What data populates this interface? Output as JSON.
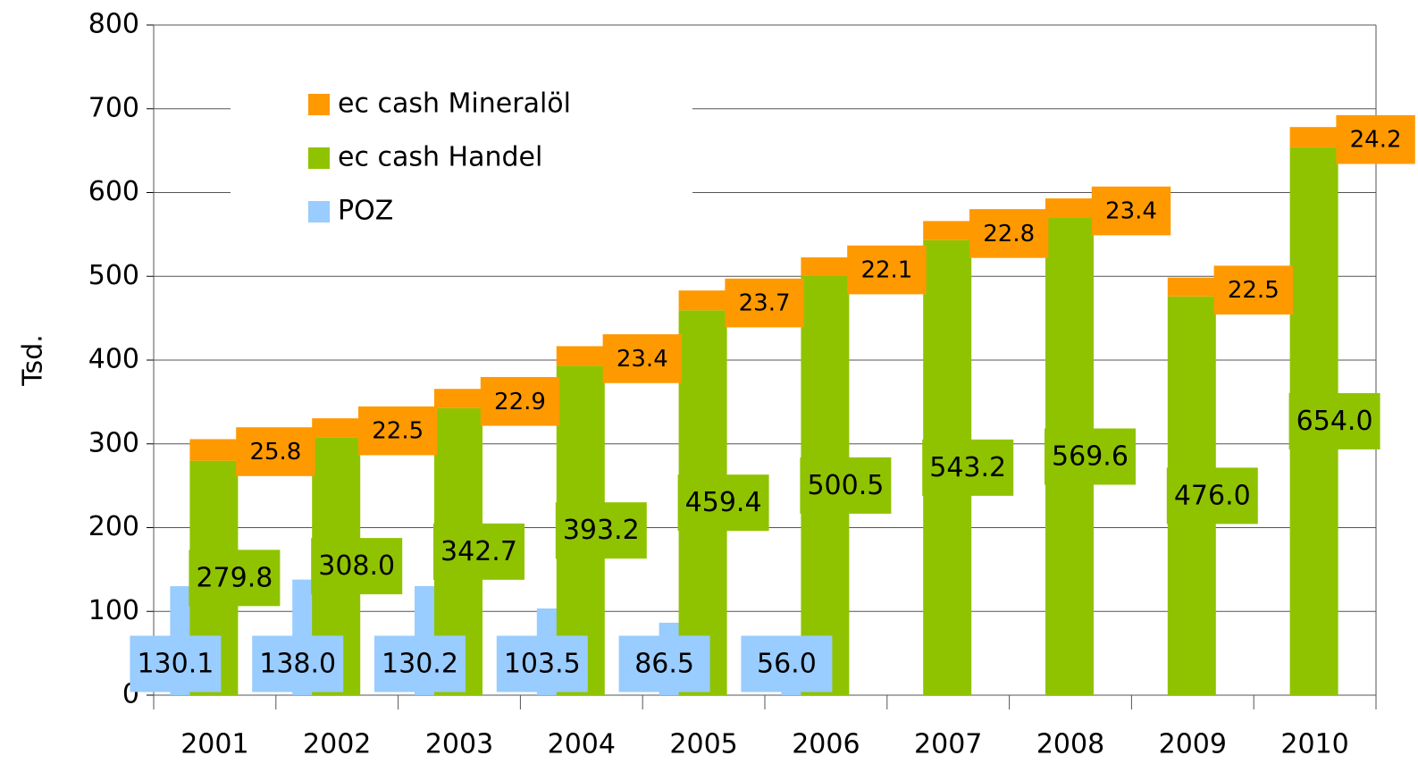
{
  "chart_data": {
    "type": "bar",
    "stacked": true,
    "y_label": "Tsd.",
    "categories": [
      "2001",
      "2002",
      "2003",
      "2004",
      "2005",
      "2006",
      "2007",
      "2008",
      "2009",
      "2010"
    ],
    "series": [
      {
        "name": "POZ",
        "color": "#99ccff",
        "stack": "poz",
        "values": [
          130.1,
          138.0,
          130.2,
          103.5,
          86.5,
          56.0,
          null,
          null,
          null,
          null
        ],
        "value_labels": [
          "130.1",
          "138.0",
          "130.2",
          "103.5",
          "86.5",
          "56.0",
          null,
          null,
          null,
          null
        ]
      },
      {
        "name": "ec cash Handel",
        "color": "#8fc300",
        "stack": "ec",
        "values": [
          279.8,
          308.0,
          342.7,
          393.2,
          459.4,
          500.5,
          543.2,
          569.6,
          476.0,
          654.0
        ],
        "value_labels": [
          "279.8",
          "308.0",
          "342.7",
          "393.2",
          "459.4",
          "500.5",
          "543.2",
          "569.6",
          "476.0",
          "654.0"
        ]
      },
      {
        "name": "ec cash Mineralöl",
        "color": "#ff9900",
        "stack": "ec",
        "values": [
          25.8,
          22.5,
          22.9,
          23.4,
          23.7,
          22.1,
          22.8,
          23.4,
          22.5,
          24.2
        ]
      }
    ],
    "ylim": [
      0,
      800
    ],
    "yticks": [
      0,
      100,
      200,
      300,
      400,
      500,
      600,
      700,
      800
    ],
    "grid": true
  }
}
